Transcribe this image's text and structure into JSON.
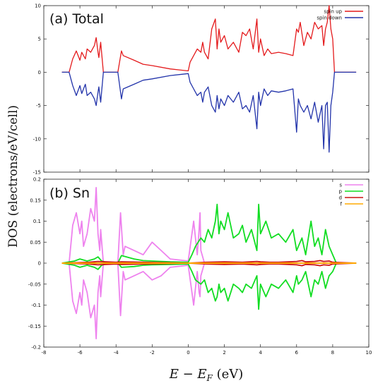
{
  "ylabel": "DOS (electrons/eV/cell)",
  "xlabel": {
    "main": "E − E",
    "sub": "F",
    "unit": " (eV)"
  },
  "chart_data": [
    {
      "type": "line",
      "title": "(a) Total",
      "xlim": [
        -8,
        10
      ],
      "ylim": [
        -15,
        10
      ],
      "x_ticks": [
        -8,
        -6,
        -4,
        -2,
        0,
        2,
        4,
        6,
        8,
        10
      ],
      "y_ticks": [
        10,
        5,
        0,
        -5,
        -10,
        -15
      ],
      "legend_position": "top-right",
      "series": [
        {
          "name": "spin up",
          "color": "#e41a1c",
          "x": [
            -7.0,
            -6.6,
            -6.4,
            -6.2,
            -6.0,
            -5.9,
            -5.7,
            -5.6,
            -5.4,
            -5.2,
            -5.1,
            -5.0,
            -4.95,
            -4.85,
            -4.7,
            -3.9,
            -3.7,
            -3.6,
            -3.0,
            -2.5,
            -2.0,
            -1.0,
            0.0,
            0.1,
            0.3,
            0.5,
            0.7,
            0.8,
            0.9,
            1.1,
            1.3,
            1.5,
            1.6,
            1.7,
            1.8,
            2.0,
            2.2,
            2.5,
            2.8,
            3.0,
            3.2,
            3.4,
            3.6,
            3.8,
            3.9,
            4.0,
            4.2,
            4.4,
            4.6,
            5.0,
            5.4,
            5.8,
            6.0,
            6.1,
            6.2,
            6.4,
            6.6,
            6.8,
            7.0,
            7.2,
            7.4,
            7.5,
            7.6,
            7.7,
            7.8,
            7.9,
            8.0,
            8.1,
            8.3,
            9.3
          ],
          "values": [
            0,
            0,
            2.0,
            3.2,
            1.8,
            3.0,
            2.0,
            3.5,
            3.0,
            4.0,
            5.2,
            3.0,
            2.2,
            4.5,
            0,
            0,
            3.2,
            2.5,
            1.8,
            1.2,
            1.0,
            0.5,
            0.2,
            1.5,
            2.5,
            3.5,
            3.0,
            4.5,
            3.0,
            2.0,
            6.5,
            8.0,
            3.5,
            6.5,
            4.5,
            5.5,
            3.5,
            4.5,
            3.0,
            6.0,
            5.5,
            6.5,
            3.5,
            8.0,
            3.0,
            5.0,
            2.5,
            3.5,
            2.8,
            3.0,
            2.8,
            2.5,
            6.5,
            6.0,
            7.5,
            4.0,
            6.0,
            5.0,
            7.5,
            6.5,
            7.0,
            4.0,
            6.5,
            7.5,
            10.0,
            6.5,
            5.0,
            0,
            0,
            0
          ]
        },
        {
          "name": "spin down",
          "color": "#2233aa",
          "x": [
            -7.0,
            -6.6,
            -6.4,
            -6.2,
            -6.0,
            -5.9,
            -5.7,
            -5.6,
            -5.4,
            -5.2,
            -5.1,
            -5.0,
            -4.95,
            -4.85,
            -4.7,
            -3.9,
            -3.7,
            -3.6,
            -3.0,
            -2.5,
            -2.0,
            -1.0,
            0.0,
            0.1,
            0.3,
            0.5,
            0.7,
            0.8,
            0.9,
            1.1,
            1.3,
            1.5,
            1.6,
            1.7,
            1.8,
            2.0,
            2.2,
            2.5,
            2.8,
            3.0,
            3.2,
            3.4,
            3.6,
            3.8,
            3.9,
            4.0,
            4.2,
            4.4,
            4.6,
            5.0,
            5.4,
            5.8,
            6.0,
            6.1,
            6.2,
            6.4,
            6.6,
            6.8,
            7.0,
            7.2,
            7.4,
            7.5,
            7.6,
            7.7,
            7.8,
            7.9,
            8.0,
            8.1,
            8.3,
            9.3
          ],
          "values": [
            0,
            0,
            -2.0,
            -3.5,
            -2.0,
            -3.2,
            -1.8,
            -3.5,
            -3.0,
            -4.0,
            -5.0,
            -3.0,
            -2.2,
            -4.5,
            0,
            0,
            -4.0,
            -2.5,
            -1.8,
            -1.2,
            -1.0,
            -0.5,
            -0.2,
            -1.5,
            -2.5,
            -3.5,
            -3.0,
            -4.5,
            -3.0,
            -2.2,
            -5.0,
            -6.0,
            -3.5,
            -5.5,
            -4.0,
            -5.0,
            -3.5,
            -4.5,
            -3.0,
            -5.5,
            -5.0,
            -6.0,
            -3.5,
            -8.5,
            -3.0,
            -5.0,
            -2.5,
            -3.5,
            -2.8,
            -3.0,
            -2.8,
            -2.5,
            -9.0,
            -4.0,
            -5.0,
            -6.0,
            -5.0,
            -7.0,
            -4.5,
            -7.5,
            -5.0,
            -11.5,
            -5.0,
            -4.5,
            -12.0,
            -5.0,
            -3.0,
            0,
            0,
            0
          ]
        }
      ]
    },
    {
      "type": "line",
      "title": "(b) Sn",
      "xlim": [
        -8,
        10
      ],
      "ylim": [
        -0.2,
        0.2
      ],
      "x_ticks": [
        -8,
        -6,
        -4,
        -2,
        0,
        2,
        4,
        6,
        8,
        10
      ],
      "y_ticks": [
        0.2,
        0.15,
        0.1,
        0.05,
        0,
        -0.05,
        -0.1,
        -0.15,
        -0.2
      ],
      "legend_position": "top-right",
      "series": [
        {
          "name": "s",
          "color": "#ee82ee",
          "x": [
            -7.0,
            -6.6,
            -6.4,
            -6.2,
            -6.0,
            -5.9,
            -5.8,
            -5.6,
            -5.4,
            -5.2,
            -5.1,
            -5.0,
            -4.9,
            -4.85,
            -4.7,
            -3.9,
            -3.75,
            -3.6,
            -3.5,
            -3.0,
            -2.5,
            -2.0,
            -1.5,
            -1.0,
            0.0,
            0.3,
            0.5,
            0.6,
            0.65,
            0.7,
            0.9,
            9.0
          ],
          "values": [
            0,
            0,
            0.09,
            0.12,
            0.07,
            0.1,
            0.04,
            0.07,
            0.13,
            0.1,
            0.18,
            0.07,
            0.03,
            0.08,
            0,
            0,
            0.12,
            0.02,
            0.04,
            0.03,
            0.02,
            0.05,
            0.03,
            0.01,
            0.005,
            0.1,
            0.02,
            0.08,
            0.12,
            0.03,
            0,
            0
          ],
          "mirror_values": [
            0,
            0,
            -0.09,
            -0.12,
            -0.07,
            -0.1,
            -0.04,
            -0.07,
            -0.13,
            -0.1,
            -0.18,
            -0.07,
            -0.03,
            -0.08,
            0,
            0,
            -0.125,
            -0.02,
            -0.04,
            -0.03,
            -0.02,
            -0.04,
            -0.03,
            -0.01,
            -0.005,
            -0.1,
            -0.02,
            -0.07,
            -0.08,
            -0.03,
            0,
            0
          ]
        },
        {
          "name": "p",
          "color": "#11dd22",
          "x": [
            -7.0,
            -6.3,
            -6.0,
            -5.6,
            -5.2,
            -5.0,
            -4.8,
            -4.4,
            -3.9,
            -3.7,
            -3.0,
            -2.5,
            -2.0,
            -1.0,
            0.0,
            0.2,
            0.4,
            0.7,
            0.9,
            1.1,
            1.3,
            1.5,
            1.6,
            1.7,
            1.8,
            2.0,
            2.2,
            2.5,
            2.8,
            3.0,
            3.2,
            3.5,
            3.8,
            3.9,
            4.0,
            4.3,
            4.6,
            5.0,
            5.4,
            5.8,
            6.0,
            6.1,
            6.3,
            6.5,
            6.8,
            7.0,
            7.2,
            7.4,
            7.6,
            7.8,
            8.0,
            8.2,
            9.3
          ],
          "values": [
            0,
            0.005,
            0.01,
            0.005,
            0.01,
            0.015,
            0.005,
            0,
            0,
            0.018,
            0.01,
            0.006,
            0.005,
            0.003,
            0.002,
            0.02,
            0.04,
            0.06,
            0.05,
            0.08,
            0.06,
            0.1,
            0.14,
            0.07,
            0.1,
            0.08,
            0.12,
            0.06,
            0.07,
            0.09,
            0.05,
            0.08,
            0.03,
            0.14,
            0.07,
            0.1,
            0.06,
            0.07,
            0.05,
            0.08,
            0.03,
            0.04,
            0.06,
            0.02,
            0.1,
            0.04,
            0.06,
            0.02,
            0.08,
            0.04,
            0.02,
            0,
            0
          ],
          "mirror_values": [
            0,
            -0.005,
            -0.01,
            -0.005,
            -0.01,
            -0.015,
            -0.005,
            0,
            0,
            -0.01,
            -0.008,
            -0.005,
            -0.004,
            -0.003,
            -0.002,
            -0.02,
            -0.04,
            -0.05,
            -0.04,
            -0.07,
            -0.06,
            -0.09,
            -0.08,
            -0.05,
            -0.07,
            -0.06,
            -0.09,
            -0.05,
            -0.06,
            -0.07,
            -0.05,
            -0.06,
            -0.03,
            -0.11,
            -0.05,
            -0.08,
            -0.05,
            -0.06,
            -0.04,
            -0.07,
            -0.03,
            -0.05,
            -0.04,
            -0.02,
            -0.08,
            -0.04,
            -0.05,
            -0.02,
            -0.06,
            -0.03,
            -0.02,
            0,
            0
          ]
        },
        {
          "name": "d",
          "color": "#cc1111",
          "x": [
            -7.0,
            -5.5,
            -5.0,
            -4.0,
            -3.7,
            0.0,
            1.0,
            2.0,
            3.0,
            3.8,
            4.0,
            4.5,
            5.0,
            6.0,
            6.3,
            6.5,
            7.0,
            7.3,
            7.5,
            7.8,
            8.0,
            9.3
          ],
          "values": [
            0,
            0.002,
            0.004,
            0.002,
            0.003,
            0,
            0.002,
            0.003,
            0.002,
            0.004,
            0.003,
            0.002,
            0.002,
            0.004,
            0.006,
            0.003,
            0.004,
            0.006,
            0.004,
            0.005,
            0.002,
            0
          ],
          "mirror_values": [
            0,
            -0.002,
            -0.004,
            -0.002,
            -0.003,
            0,
            -0.002,
            -0.003,
            -0.002,
            -0.004,
            -0.003,
            -0.002,
            -0.002,
            -0.004,
            -0.006,
            -0.003,
            -0.004,
            -0.006,
            -0.004,
            -0.005,
            -0.002,
            0
          ]
        },
        {
          "name": "f",
          "color": "#ffaa00",
          "x": [
            -7.0,
            9.3
          ],
          "values": [
            0,
            0
          ],
          "mirror_values": [
            0,
            0
          ]
        }
      ]
    }
  ]
}
